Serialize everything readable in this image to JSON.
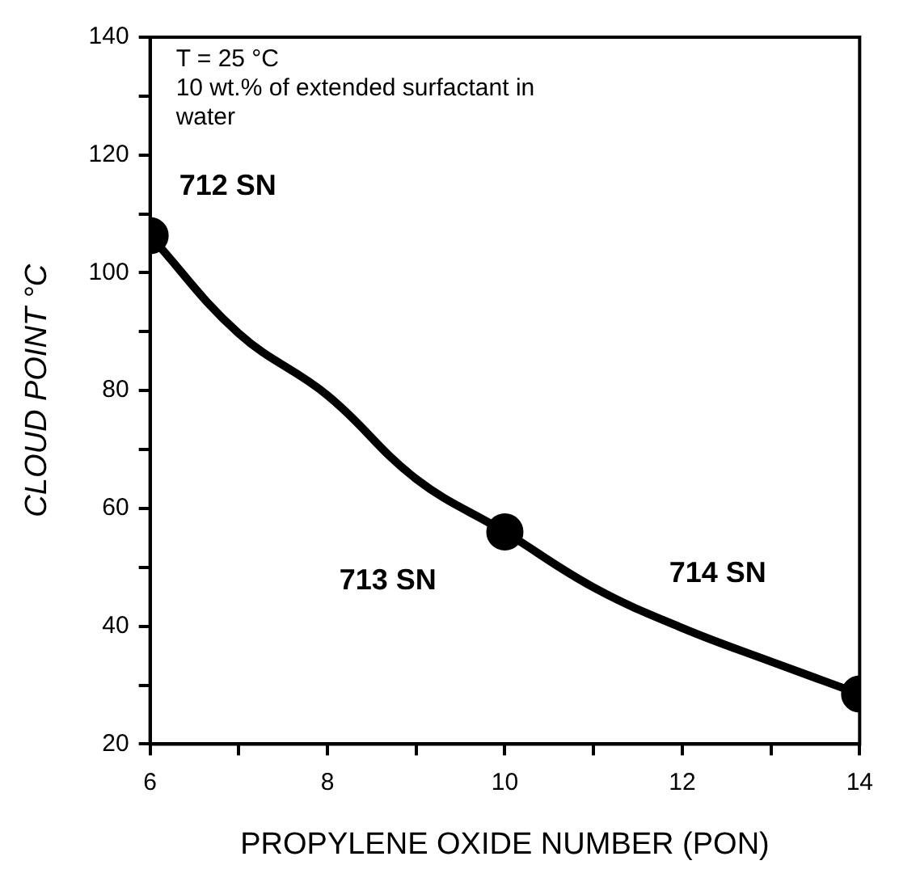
{
  "chart_data": {
    "type": "line",
    "xlabel": "PROPYLENE OXIDE NUMBER (PON)",
    "ylabel": "CLOUD POINT °C",
    "series": [
      {
        "color": "#000000",
        "marker": "none",
        "x": [
          6,
          7,
          8,
          9,
          10,
          11,
          12,
          13,
          14
        ],
        "values": [
          106.3,
          89.7,
          79.2,
          65,
          56,
          46.6,
          39.7,
          34,
          28.5
        ]
      },
      {
        "type": "scatter",
        "color": "#000000",
        "marker": "circle",
        "x": [
          6,
          10,
          14
        ],
        "values": [
          106.3,
          56,
          28.5
        ]
      }
    ],
    "xlim": [
      6,
      14
    ],
    "xticks": [
      6,
      {
        "value": 7,
        "label": null
      },
      8,
      {
        "value": 9,
        "label": null
      },
      10,
      {
        "value": 11,
        "label": null
      },
      12,
      {
        "value": 13,
        "label": null
      },
      14
    ],
    "ylim": [
      20,
      140
    ],
    "yticks": [
      20,
      {
        "value": 30,
        "label": null
      },
      40,
      {
        "value": 50,
        "label": null
      },
      60,
      {
        "value": 70,
        "label": null
      },
      80,
      {
        "value": 90,
        "label": null
      },
      100,
      {
        "value": 110,
        "label": null
      },
      120,
      {
        "value": 130,
        "label": null
      },
      140
    ],
    "grid": false,
    "legend": false,
    "line_style": "solid",
    "annotations": [
      "T = 25 °C",
      "10 wt.% of extended surfactant in water",
      {
        "text": "712 SN",
        "x": 6,
        "y": 106.3
      },
      "713 SN",
      "714 SN"
    ]
  }
}
